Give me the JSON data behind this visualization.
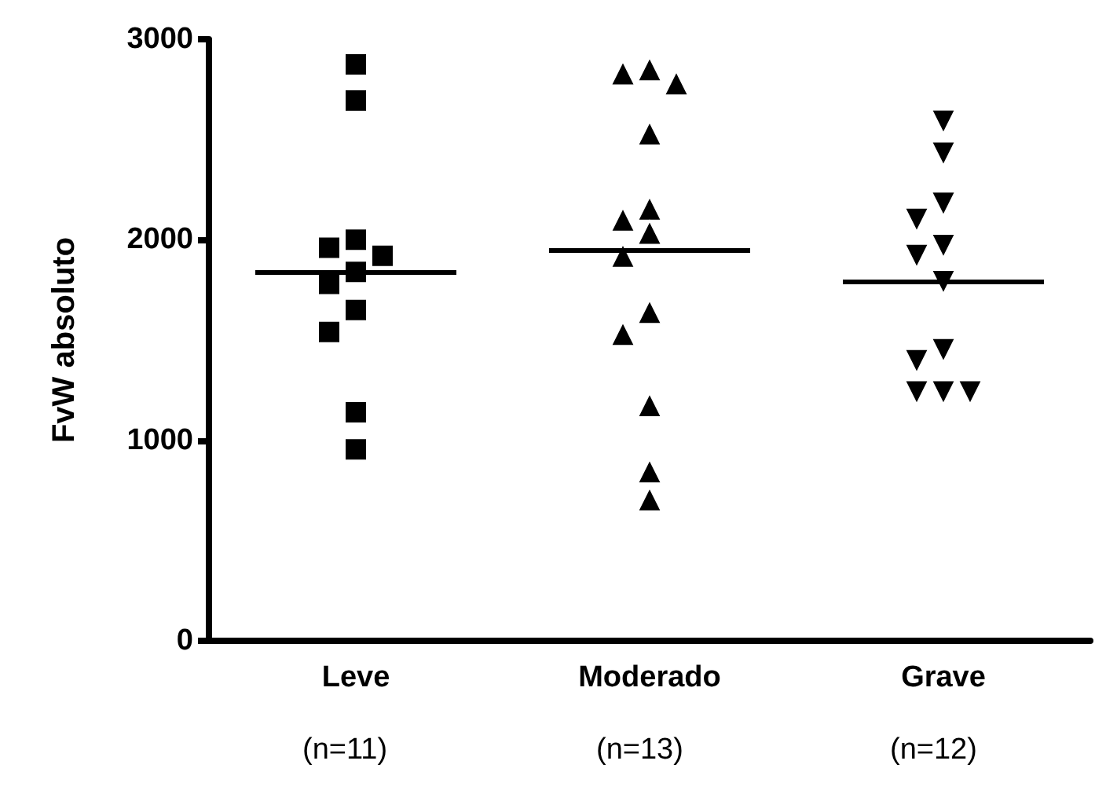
{
  "chart_data": {
    "type": "scatter",
    "ylabel": "FvW absoluto",
    "categories": [
      "Leve",
      "Moderado",
      "Grave"
    ],
    "annotations": [
      "(n=11)",
      "(n=13)",
      "(n=12)"
    ],
    "ylim": [
      0,
      3000
    ],
    "yticks": [
      0,
      1000,
      2000,
      3000
    ],
    "grid": false,
    "series": [
      {
        "color": "#000000",
        "marker": "square",
        "x": [
          "Leve",
          "Leve",
          "Leve",
          "Leve",
          "Leve",
          "Leve",
          "Leve",
          "Leve",
          "Leve",
          "Leve",
          "Leve"
        ],
        "values": [
          2875,
          2695,
          2000,
          1960,
          1920,
          1840,
          1780,
          1650,
          1540,
          1140,
          955
        ]
      },
      {
        "color": "#000000",
        "marker": "triangle",
        "x": [
          "Moderado",
          "Moderado",
          "Moderado",
          "Moderado",
          "Moderado",
          "Moderado",
          "Moderado",
          "Moderado",
          "Moderado",
          "Moderado",
          "Moderado",
          "Moderado",
          "Moderado"
        ],
        "values": [
          2850,
          2830,
          2780,
          2530,
          2155,
          2100,
          2035,
          1920,
          1640,
          1530,
          1175,
          845,
          705
        ]
      },
      {
        "color": "#000000",
        "marker": "triangle-down",
        "x": [
          "Grave",
          "Grave",
          "Grave",
          "Grave",
          "Grave",
          "Grave",
          "Grave",
          "Grave",
          "Grave",
          "Grave",
          "Grave",
          "Grave"
        ],
        "values": [
          2590,
          2430,
          2180,
          2100,
          1970,
          1920,
          1790,
          1450,
          1395,
          1240,
          1240,
          1240
        ]
      }
    ],
    "ref_lines": [
      {
        "axis": "y",
        "value": 1840,
        "color": "#000000"
      },
      {
        "axis": "y",
        "value": 1945,
        "color": "#000000"
      },
      {
        "axis": "y",
        "value": 1790,
        "color": "#000000"
      }
    ]
  }
}
